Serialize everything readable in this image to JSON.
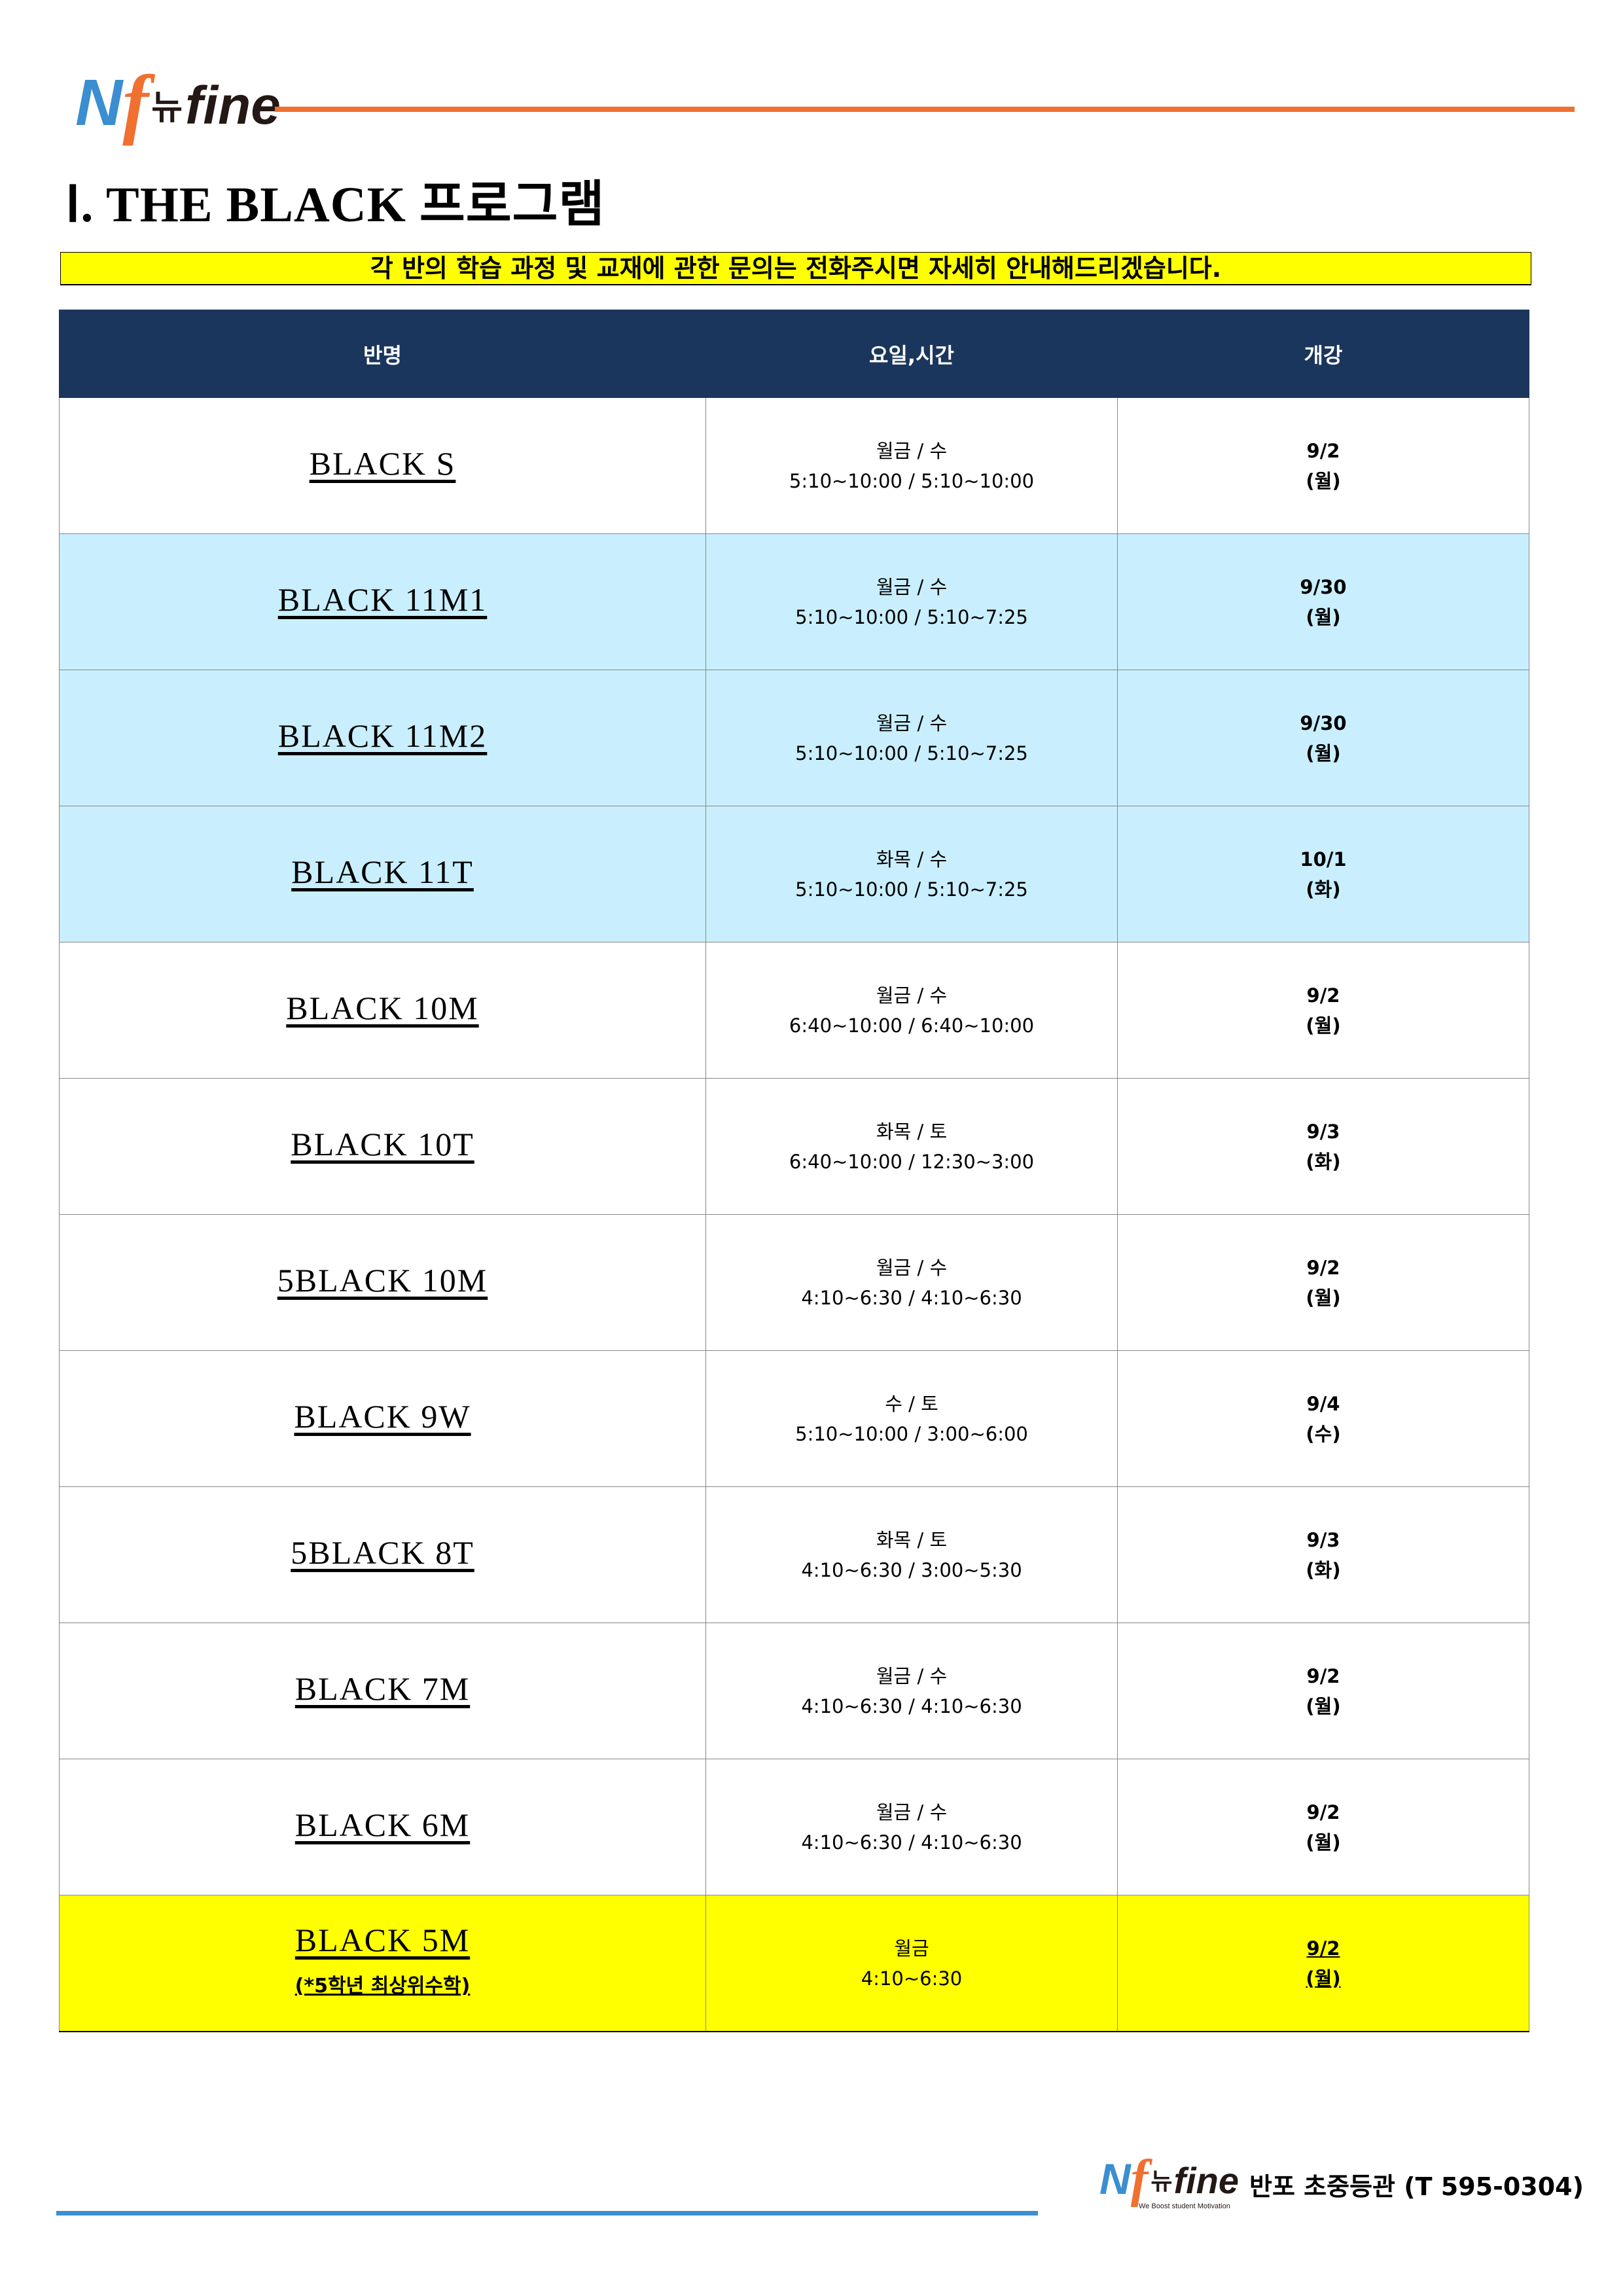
{
  "header": {
    "logo": {
      "mark_n": "N",
      "mark_f": "f",
      "korean": "뉴",
      "text": "fine"
    },
    "title_roman": "Ⅰ. THE BLACK",
    "title_korean": "프로그램",
    "banner": "각 반의 학습 과정 및 교재에 관한 문의는 전화주시면 자세히 안내해드리겠습니다."
  },
  "colors": {
    "accent_orange": "#f07030",
    "accent_blue": "#3b8ed0",
    "header_navy": "#1b365d",
    "row_blue": "#c9efff",
    "highlight_yellow": "#ffff00"
  },
  "table": {
    "columns": [
      "반명",
      "요일,시간",
      "개강"
    ],
    "rows": [
      {
        "name": "BLACK S",
        "days": "월금 / 수",
        "time": "5:10~10:00 / 5:10~10:00",
        "start": "9/2",
        "weekday": "(월)",
        "style": "white"
      },
      {
        "name": "BLACK 11M1",
        "days": "월금 / 수",
        "time": "5:10~10:00 / 5:10~7:25",
        "start": "9/30",
        "weekday": "(월)",
        "style": "blue"
      },
      {
        "name": "BLACK 11M2",
        "days": "월금 / 수",
        "time": "5:10~10:00 / 5:10~7:25",
        "start": "9/30",
        "weekday": "(월)",
        "style": "blue"
      },
      {
        "name": "BLACK 11T",
        "days": "화목 / 수",
        "time": "5:10~10:00 / 5:10~7:25",
        "start": "10/1",
        "weekday": "(화)",
        "style": "blue"
      },
      {
        "name": "BLACK 10M",
        "days": "월금 / 수",
        "time": "6:40~10:00 / 6:40~10:00",
        "start": "9/2",
        "weekday": "(월)",
        "style": "white"
      },
      {
        "name": "BLACK 10T",
        "days": "화목 / 토",
        "time": "6:40~10:00 / 12:30~3:00",
        "start": "9/3",
        "weekday": "(화)",
        "style": "white"
      },
      {
        "name": "5BLACK 10M",
        "days": "월금 / 수",
        "time": "4:10~6:30 / 4:10~6:30",
        "start": "9/2",
        "weekday": "(월)",
        "style": "white"
      },
      {
        "name": "BLACK 9W",
        "days": "수 / 토",
        "time": "5:10~10:00 / 3:00~6:00",
        "start": "9/4",
        "weekday": "(수)",
        "style": "white"
      },
      {
        "name": "5BLACK 8T",
        "days": "화목 / 토",
        "time": "4:10~6:30 / 3:00~5:30",
        "start": "9/3",
        "weekday": "(화)",
        "style": "white"
      },
      {
        "name": "BLACK 7M",
        "days": "월금 / 수",
        "time": "4:10~6:30 / 4:10~6:30",
        "start": "9/2",
        "weekday": "(월)",
        "style": "white"
      },
      {
        "name": "BLACK 6M",
        "days": "월금 / 수",
        "time": "4:10~6:30 / 4:10~6:30",
        "start": "9/2",
        "weekday": "(월)",
        "style": "white"
      },
      {
        "name": "BLACK 5M",
        "note": "(*5학년 최상위수학)",
        "days": "월금",
        "time": "4:10~6:30",
        "start": "9/2",
        "weekday": "(월)",
        "style": "yellow"
      }
    ]
  },
  "footer": {
    "logo": {
      "mark_n": "N",
      "mark_f": "f",
      "korean": "뉴",
      "text": "fine",
      "tagline": "We Boost student Motivation"
    },
    "text": "반포 초중등관 (T 595-0304)"
  }
}
